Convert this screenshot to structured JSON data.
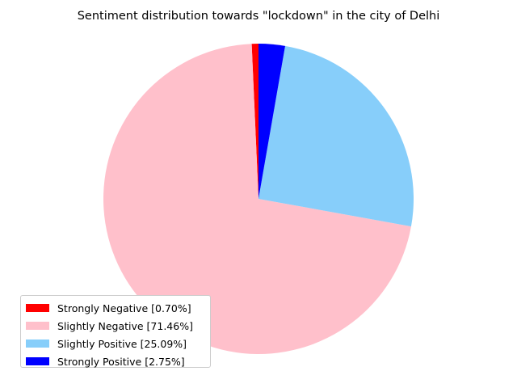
{
  "chart_data": {
    "type": "pie",
    "title": "Sentiment distribution towards \"lockdown\" in the city of Delhi",
    "slices": [
      {
        "label": "Strongly Negative",
        "value": 0.7,
        "color": "#ff0000",
        "legend": "Strongly Negative [0.70%]"
      },
      {
        "label": "Slightly Negative",
        "value": 71.46,
        "color": "#ffc0cb",
        "legend": "Slightly Negative [71.46%]"
      },
      {
        "label": "Slightly Positive",
        "value": 25.09,
        "color": "#87cefa",
        "legend": "Slightly Positive [25.09%]"
      },
      {
        "label": "Strongly Positive",
        "value": 2.75,
        "color": "#0000ff",
        "legend": "Strongly Positive [2.75%]"
      }
    ],
    "start_angle_deg": 90,
    "direction": "counterclockwise",
    "legend_position": "lower-left"
  }
}
